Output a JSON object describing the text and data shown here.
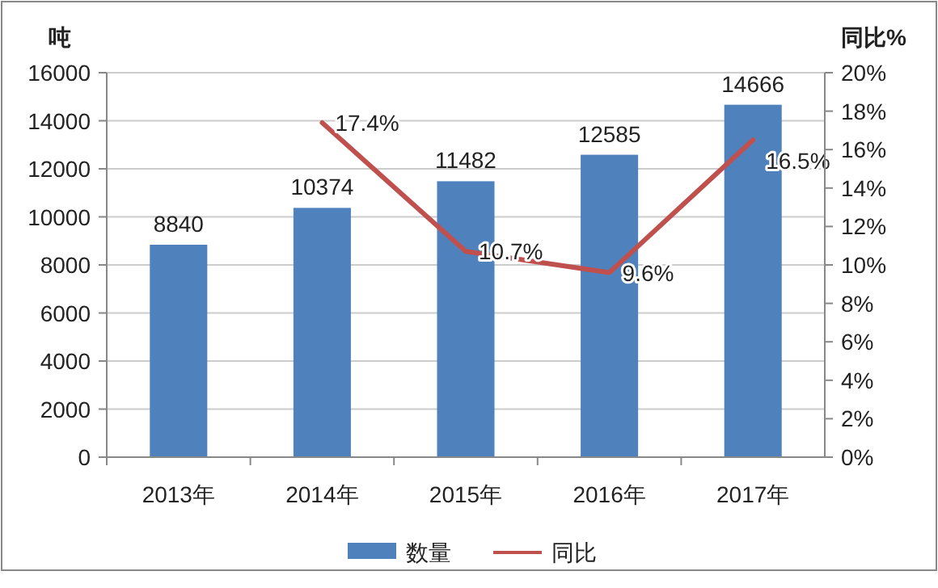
{
  "chart_data": {
    "type": "bar",
    "ylabel": "吨",
    "y2label": "同比%",
    "categories": [
      "2013年",
      "2014年",
      "2015年",
      "2016年",
      "2017年"
    ],
    "series": [
      {
        "name": "数量",
        "color": "#4f81bd",
        "values": [
          8840,
          10374,
          11482,
          12585,
          14666
        ],
        "value_labels": [
          "8840",
          "10374",
          "11482",
          "12585",
          "14666"
        ]
      },
      {
        "name": "同比",
        "type": "line",
        "axis": "y2",
        "color": "#c0504d",
        "values": [
          null,
          17.4,
          10.7,
          9.6,
          16.5
        ],
        "value_labels": [
          null,
          "17.4%",
          "10.7%",
          "9.6%",
          "16.5%"
        ]
      }
    ],
    "ylim": [
      0,
      16000
    ],
    "yticks": [
      0,
      2000,
      4000,
      6000,
      8000,
      10000,
      12000,
      14000,
      16000
    ],
    "y2lim": [
      0,
      20
    ],
    "y2ticks": [
      {
        "value": 0,
        "label": "0%"
      },
      {
        "value": 2,
        "label": "2%"
      },
      {
        "value": 4,
        "label": "4%"
      },
      {
        "value": 6,
        "label": "6%"
      },
      {
        "value": 8,
        "label": "8%"
      },
      {
        "value": 10,
        "label": "10%"
      },
      {
        "value": 12,
        "label": "12%"
      },
      {
        "value": 14,
        "label": "14%"
      },
      {
        "value": 16,
        "label": "16%"
      },
      {
        "value": 18,
        "label": "18%"
      },
      {
        "value": 20,
        "label": "20%"
      }
    ],
    "grid": "y",
    "legend": "bottom",
    "marker": "none",
    "line_style": "solid"
  }
}
